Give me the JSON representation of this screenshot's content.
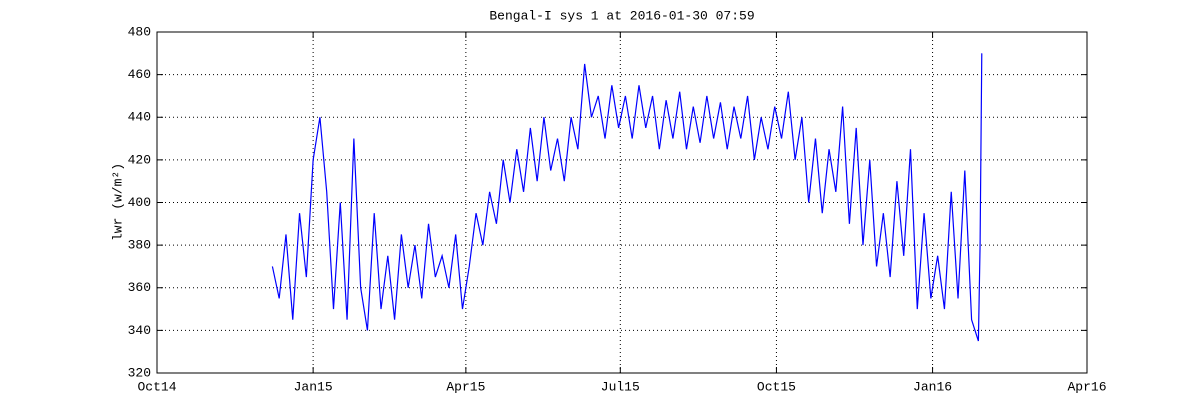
{
  "chart_data": {
    "type": "line",
    "title": "Bengal-I sys 1 at 2016-01-30 07:59",
    "ylabel": "lwr (w/m²)",
    "x": [
      735941,
      735945,
      735949,
      735953,
      735957,
      735961,
      735965,
      735969,
      735973,
      735977,
      735981,
      735985,
      735989,
      735993,
      735997,
      736001,
      736005,
      736009,
      736013,
      736017,
      736021,
      736025,
      736029,
      736033,
      736037,
      736041,
      736045,
      736049,
      736053,
      736057,
      736061,
      736065,
      736069,
      736073,
      736077,
      736081,
      736085,
      736089,
      736093,
      736097,
      736101,
      736105,
      736109,
      736113,
      736117,
      736121,
      736125,
      736129,
      736133,
      736137,
      736141,
      736145,
      736149,
      736153,
      736157,
      736161,
      736165,
      736169,
      736173,
      736177,
      736181,
      736185,
      736189,
      736193,
      736197,
      736201,
      736205,
      736209,
      736213,
      736217,
      736221,
      736225,
      736229,
      736233,
      736237,
      736241,
      736245,
      736249,
      736253,
      736257,
      736261,
      736265,
      736269,
      736273,
      736277,
      736281,
      736285,
      736289,
      736293,
      736297,
      736301,
      736305,
      736309,
      736313,
      736317,
      736321,
      736325,
      736329,
      736333,
      736337,
      736341,
      736345,
      736349,
      736353,
      736357,
      736358,
      736359
    ],
    "series": [
      {
        "color": "#0000ff",
        "values": [
          370,
          355,
          385,
          345,
          395,
          365,
          420,
          440,
          405,
          350,
          400,
          345,
          430,
          360,
          340,
          395,
          350,
          375,
          345,
          385,
          360,
          380,
          355,
          390,
          365,
          375,
          360,
          385,
          350,
          370,
          395,
          380,
          405,
          390,
          420,
          400,
          425,
          405,
          435,
          410,
          440,
          415,
          430,
          410,
          440,
          425,
          465,
          440,
          450,
          430,
          455,
          435,
          450,
          430,
          455,
          435,
          450,
          425,
          448,
          430,
          452,
          425,
          445,
          428,
          450,
          430,
          447,
          425,
          445,
          430,
          450,
          420,
          440,
          425,
          445,
          430,
          452,
          420,
          440,
          400,
          430,
          395,
          425,
          405,
          445,
          390,
          435,
          380,
          420,
          370,
          395,
          365,
          410,
          375,
          425,
          350,
          395,
          355,
          375,
          350,
          405,
          355,
          415,
          345,
          335,
          380,
          470
        ]
      }
    ],
    "xlim": [
      735873,
      736421
    ],
    "xticks": [
      {
        "value": 735873,
        "label": "Oct14"
      },
      {
        "value": 735965,
        "label": "Jan15"
      },
      {
        "value": 736055,
        "label": "Apr15"
      },
      {
        "value": 736146,
        "label": "Jul15"
      },
      {
        "value": 736238,
        "label": "Oct15"
      },
      {
        "value": 736330,
        "label": "Jan16"
      },
      {
        "value": 736421,
        "label": "Apr16"
      }
    ],
    "ylim": [
      320,
      480
    ],
    "yticks": [
      320,
      340,
      360,
      380,
      400,
      420,
      440,
      460,
      480
    ],
    "grid": true
  }
}
